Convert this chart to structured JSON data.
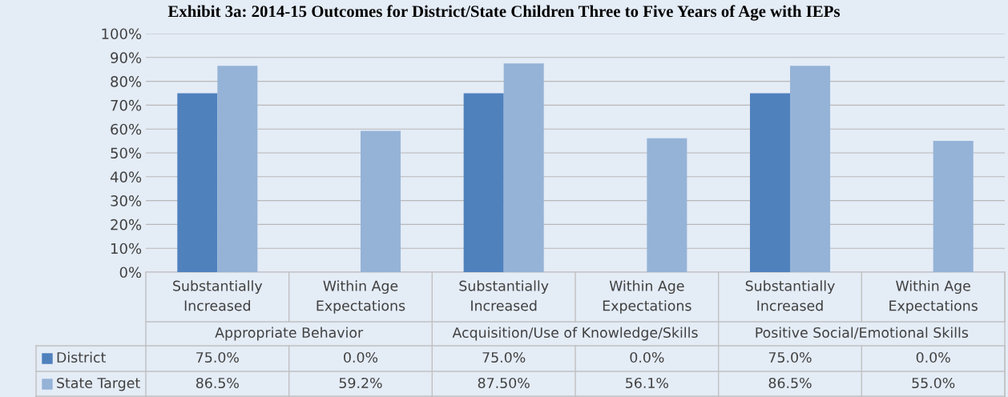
{
  "chart_data": {
    "type": "bar",
    "title": "Exhibit 3a: 2014-15 Outcomes for District/State Children Three to Five Years of Age with IEPs",
    "categories": [
      "Substantially Increased",
      "Within Age Expectations",
      "Substantially Increased",
      "Within Age Expectations",
      "Substantially Increased",
      "Within Age Expectations"
    ],
    "series": [
      {
        "name": "District",
        "color": "#4f81bd",
        "values": [
          75.0,
          0.0,
          75.0,
          0.0,
          75.0,
          0.0
        ],
        "value_labels": [
          "75.0%",
          "0.0%",
          "75.0%",
          "0.0%",
          "75.0%",
          "0.0%"
        ]
      },
      {
        "name": "State Target",
        "color": "#95b3d7",
        "values": [
          86.5,
          59.2,
          87.5,
          56.1,
          86.5,
          55.0
        ],
        "value_labels": [
          "86.5%",
          "59.2%",
          "87.50%",
          "56.1%",
          "86.5%",
          "55.0%"
        ]
      }
    ],
    "annotations": [
      "Appropriate Behavior",
      "Acquisition/Use of Knowledge/Skills",
      "Positive Social/Emotional Skills"
    ],
    "ylim": [
      0,
      100
    ],
    "yticks": [
      {
        "value": 0,
        "label": "0%"
      },
      {
        "value": 10,
        "label": "10%"
      },
      {
        "value": 20,
        "label": "20%"
      },
      {
        "value": 30,
        "label": "30%"
      },
      {
        "value": 40,
        "label": "40%"
      },
      {
        "value": 50,
        "label": "50%"
      },
      {
        "value": 60,
        "label": "60%"
      },
      {
        "value": 70,
        "label": "70%"
      },
      {
        "value": 80,
        "label": "80%"
      },
      {
        "value": 90,
        "label": "90%"
      },
      {
        "value": 100,
        "label": "100%"
      }
    ],
    "grid": "y",
    "legend": "bottom left"
  }
}
